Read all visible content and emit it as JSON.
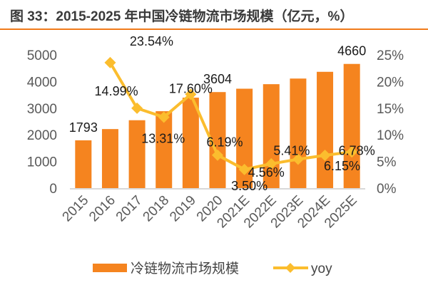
{
  "title": "图 33：2015-2025 年中国冷链物流市场规模（亿元，%）",
  "colors": {
    "bar": "#f5841f",
    "line": "#fbbd2e",
    "rule": "#f07a1a",
    "axis": "#d9d9d9"
  },
  "chart_data": {
    "type": "bar",
    "categories": [
      "2015",
      "2016",
      "2017",
      "2018",
      "2019",
      "2020",
      "2021E",
      "2022E",
      "2023E",
      "2024E",
      "2025E"
    ],
    "series": [
      {
        "name": "冷链物流市场规模",
        "type": "bar",
        "axis": "left",
        "values": [
          1793,
          2215,
          2547,
          2886,
          3394,
          3604,
          3730,
          3900,
          4111,
          4364,
          4660
        ],
        "data_labels": [
          "1793",
          "",
          "",
          "",
          "",
          "3604",
          "",
          "",
          "",
          "",
          "4660"
        ]
      },
      {
        "name": "yoy",
        "type": "line",
        "axis": "right",
        "marker": "diamond",
        "values": [
          null,
          23.54,
          14.99,
          13.31,
          17.6,
          6.19,
          3.5,
          4.56,
          5.41,
          6.15,
          6.78
        ],
        "data_labels": [
          "",
          "23.54%",
          "14.99%",
          "13.31%",
          "17.60%",
          "6.19%",
          "3.50%",
          "4.56%",
          "5.41%",
          "6.15%",
          "6.78%"
        ]
      }
    ],
    "left_axis": {
      "ylim": [
        0,
        5000
      ],
      "ticks": [
        "0",
        "1000",
        "2000",
        "3000",
        "4000",
        "5000"
      ]
    },
    "right_axis": {
      "ylim": [
        0,
        25
      ],
      "ticks": [
        "0%",
        "5%",
        "10%",
        "15%",
        "20%",
        "25%"
      ]
    },
    "grid": false,
    "legend": "bottom"
  }
}
